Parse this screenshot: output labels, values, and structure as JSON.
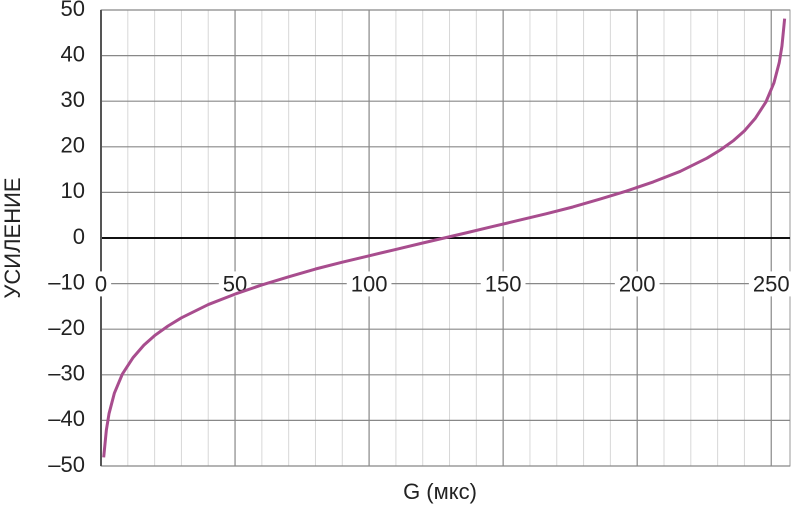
{
  "chart_data": {
    "type": "line",
    "x_label": "G (мкс)",
    "y_label": "УСИЛЕНИЕ",
    "x": [
      1,
      2,
      3,
      5,
      8,
      12,
      16,
      20,
      25,
      30,
      40,
      50,
      60,
      70,
      80,
      90,
      100,
      110,
      120,
      128,
      136,
      146,
      156,
      166,
      176,
      186,
      196,
      206,
      216,
      226,
      231,
      236,
      240,
      244,
      248,
      251,
      253,
      254,
      255
    ],
    "series": [
      {
        "color": "#a84d8e",
        "values": [
          -48.1,
          -42.1,
          -38.5,
          -34.0,
          -29.8,
          -26.2,
          -23.5,
          -21.4,
          -19.3,
          -17.5,
          -14.6,
          -12.3,
          -10.3,
          -8.5,
          -6.8,
          -5.3,
          -3.9,
          -2.5,
          -1.1,
          0,
          1.1,
          2.5,
          3.9,
          5.3,
          6.8,
          8.5,
          10.3,
          12.3,
          14.6,
          17.5,
          19.3,
          21.4,
          23.5,
          26.2,
          29.8,
          34.0,
          38.5,
          42.1,
          48.1
        ]
      }
    ],
    "xlim": [
      0,
      257
    ],
    "ylim": [
      -50,
      50
    ],
    "xticks": [
      0,
      50,
      100,
      150,
      200,
      250
    ],
    "x_minor_ticks": [
      10,
      20,
      30,
      40,
      60,
      70,
      80,
      90,
      110,
      120,
      130,
      140,
      160,
      170,
      180,
      190,
      210,
      220,
      230,
      240
    ],
    "yticks": [
      {
        "value": -50,
        "label": "–50"
      },
      {
        "value": -40,
        "label": "–40"
      },
      {
        "value": -30,
        "label": "–30"
      },
      {
        "value": -20,
        "label": "–20"
      },
      {
        "value": -10,
        "label": "–10"
      },
      0,
      10,
      20,
      30,
      40,
      50
    ],
    "grid": true
  }
}
